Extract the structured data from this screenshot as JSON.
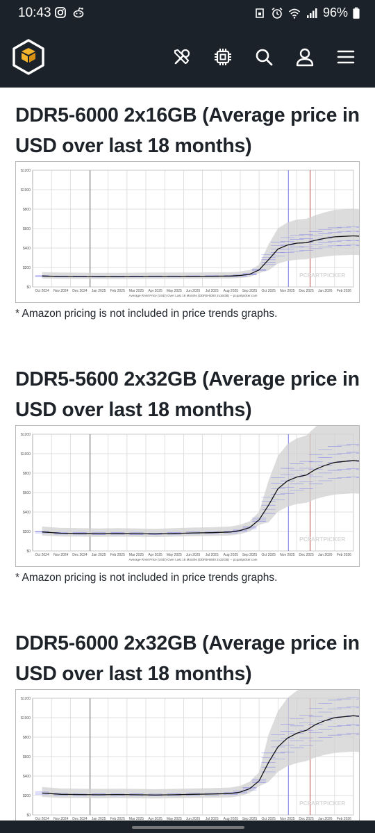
{
  "status_bar": {
    "time": "10:43",
    "battery": "96%",
    "left_icons": [
      "instagram-icon",
      "reddit-icon"
    ],
    "right_icons": [
      "screenshot-icon",
      "alarm-icon",
      "wifi-icon",
      "signal-icon",
      "battery-icon"
    ]
  },
  "nav": {
    "logo": "pcpartpicker-logo",
    "icons": [
      "tools-icon",
      "cpu-chip-icon",
      "search-icon",
      "user-icon",
      "menu-icon"
    ]
  },
  "watermark": "PCPARTPICKER",
  "sections": [
    {
      "title": "DDR5-6000 2x16GB (Average price in USD over last 18 months)",
      "chart_caption": "Average RAM Price (USD) Over Last 18 Months (DDR5-6000 2x16GB) -- pcpartpicker.com",
      "note": "* Amazon pricing is not included in price trends graphs.",
      "chart_data": {
        "type": "line",
        "xlabel": "Average RAM Price (USD) Over Last 18 Months (DDR5-6000 2x16GB) -- pcpartpicker.com",
        "ylabel": "",
        "ylim": [
          0,
          1200
        ],
        "y_ticks": [
          "$0",
          "$200",
          "$400",
          "$600",
          "$800",
          "$1000",
          "$1200"
        ],
        "x_ticks": [
          "Oct 2024",
          "Nov 2024",
          "Dec 2024",
          "Jan 2025",
          "Feb 2025",
          "Mar 2025",
          "Apr 2025",
          "May 2025",
          "Jun 2025",
          "Jul 2025",
          "Aug 2025",
          "Sep 2025",
          "Oct 2025",
          "Nov 2025",
          "Dec 2025",
          "Jan 2026",
          "Feb 2026"
        ],
        "x": [
          0,
          1,
          2,
          3,
          4,
          5,
          6,
          7,
          8,
          9,
          10,
          10.5,
          11,
          11.5,
          12,
          12.5,
          13,
          13.5,
          14,
          14.5,
          15,
          15.5,
          16,
          16.5,
          17
        ],
        "series": [
          {
            "values": [
              112,
              108,
              107,
              106,
              106,
              107,
              108,
              108,
              109,
              110,
              112,
              118,
              130,
              175,
              280,
              390,
              430,
              450,
              455,
              480,
              500,
              515,
              520,
              525,
              520
            ]
          }
        ],
        "grid": true
      }
    },
    {
      "title": "DDR5-5600 2x32GB (Average price in USD over last 18 months)",
      "chart_caption": "Average RAM Price (USD) Over Last 18 Months (DDR5-5600 2x32GB) -- pcpartpicker.com",
      "note": "* Amazon pricing is not included in price trends graphs.",
      "chart_data": {
        "type": "line",
        "xlabel": "Average RAM Price (USD) Over Last 18 Months (DDR5-5600 2x32GB) -- pcpartpicker.com",
        "ylabel": "",
        "ylim": [
          0,
          1200
        ],
        "y_ticks": [
          "$0",
          "$200",
          "$400",
          "$600",
          "$800",
          "$1000",
          "$1200"
        ],
        "x_ticks": [
          "Oct 2024",
          "Nov 2024",
          "Dec 2024",
          "Jan 2025",
          "Feb 2025",
          "Mar 2025",
          "Apr 2025",
          "May 2025",
          "Jun 2025",
          "Jul 2025",
          "Aug 2025",
          "Sep 2025",
          "Oct 2025",
          "Nov 2025",
          "Dec 2025",
          "Jan 2026",
          "Feb 2026"
        ],
        "x": [
          0,
          1,
          2,
          3,
          4,
          5,
          6,
          7,
          8,
          9,
          10,
          10.5,
          11,
          11.5,
          12,
          12.5,
          13,
          13.5,
          14,
          14.5,
          15,
          15.5,
          16,
          16.5,
          17
        ],
        "series": [
          {
            "values": [
              195,
              182,
              180,
              178,
              180,
              178,
              175,
              180,
              185,
              188,
              195,
              210,
              240,
              320,
              470,
              640,
              720,
              760,
              780,
              840,
              880,
              910,
              920,
              930,
              920
            ]
          }
        ],
        "grid": true
      }
    },
    {
      "title": "DDR5-6000 2x32GB (Average price in USD over last 18 months)",
      "chart_caption": "",
      "note": "",
      "chart_data": {
        "type": "line",
        "xlabel": "",
        "ylabel": "",
        "ylim": [
          0,
          1200
        ],
        "y_ticks": [
          "$0",
          "$200",
          "$400",
          "$600",
          "$800",
          "$1000",
          "$1200"
        ],
        "x_ticks": [
          "Oct 2024",
          "Nov 2024",
          "Dec 2024",
          "Jan 2025",
          "Feb 2025",
          "Mar 2025",
          "Apr 2025",
          "May 2025",
          "Jun 2025",
          "Jul 2025",
          "Aug 2025",
          "Sep 2025",
          "Oct 2025",
          "Nov 2025",
          "Dec 2025",
          "Jan 2026",
          "Feb 2026"
        ],
        "x": [
          0,
          1,
          2,
          3,
          4,
          5,
          6,
          7,
          8,
          9,
          10,
          10.5,
          11,
          11.5,
          12,
          12.5,
          13,
          13.5,
          14,
          14.5,
          15,
          15.5,
          16,
          16.5,
          17
        ],
        "series": [
          {
            "values": [
              225,
              212,
              210,
              208,
              210,
              208,
              205,
              208,
              212,
              215,
              220,
              235,
              270,
              350,
              540,
              700,
              790,
              840,
              870,
              930,
              970,
              1000,
              1010,
              1020,
              1010
            ]
          }
        ],
        "grid": true
      }
    }
  ]
}
